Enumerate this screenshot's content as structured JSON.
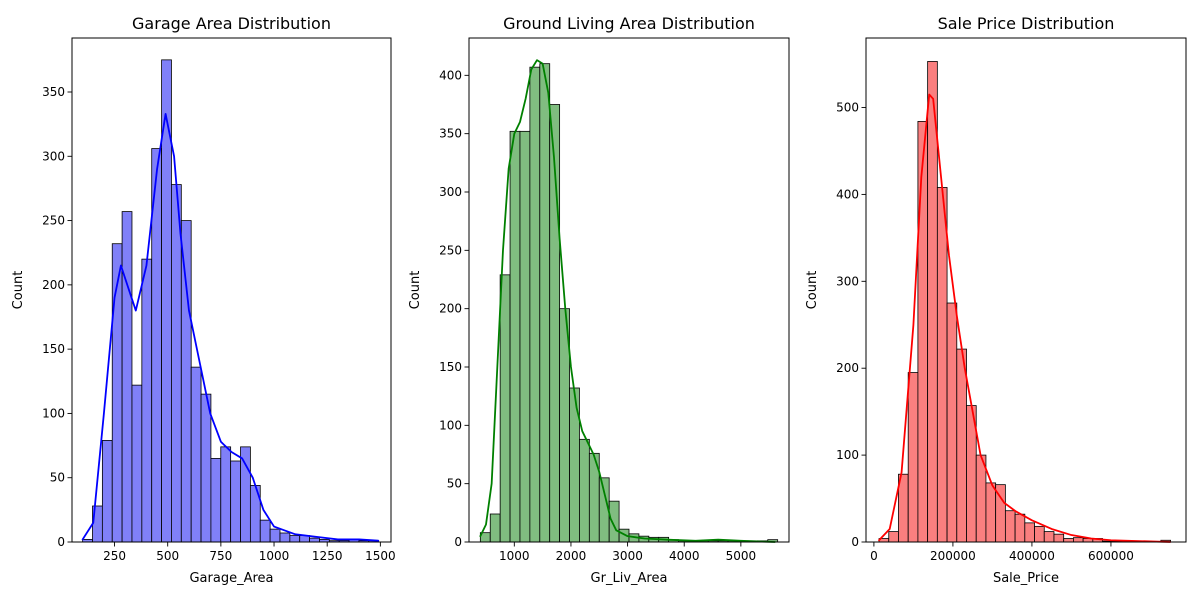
{
  "chart_data": [
    {
      "type": "histogram",
      "title": "Garage Area Distribution",
      "xlabel": "Garage_Area",
      "ylabel": "Count",
      "xlim": [
        50,
        1550
      ],
      "ylim": [
        0,
        392
      ],
      "xticks": [
        250,
        500,
        750,
        1000,
        1250,
        1500
      ],
      "yticks": [
        0,
        50,
        100,
        150,
        200,
        250,
        300,
        350
      ],
      "bin_start": 100,
      "bin_width": 46.4,
      "counts": [
        2,
        28,
        79,
        232,
        257,
        122,
        220,
        306,
        375,
        278,
        250,
        136,
        115,
        65,
        74,
        63,
        74,
        44,
        17,
        10,
        7,
        5,
        5,
        3,
        2,
        1,
        1,
        2,
        1,
        1
      ],
      "kde": [
        [
          100,
          2
        ],
        [
          150,
          15
        ],
        [
          200,
          100
        ],
        [
          250,
          190
        ],
        [
          280,
          215
        ],
        [
          310,
          200
        ],
        [
          350,
          180
        ],
        [
          400,
          215
        ],
        [
          450,
          290
        ],
        [
          490,
          333
        ],
        [
          530,
          300
        ],
        [
          560,
          240
        ],
        [
          600,
          180
        ],
        [
          650,
          140
        ],
        [
          700,
          100
        ],
        [
          750,
          78
        ],
        [
          800,
          70
        ],
        [
          850,
          65
        ],
        [
          900,
          50
        ],
        [
          950,
          25
        ],
        [
          1000,
          12
        ],
        [
          1100,
          6
        ],
        [
          1200,
          4
        ],
        [
          1300,
          2
        ],
        [
          1400,
          2
        ],
        [
          1490,
          1
        ]
      ],
      "color": "#0000ff",
      "fill": "#8080f8"
    },
    {
      "type": "histogram",
      "title": "Ground Living Area Distribution",
      "xlabel": "Gr_Liv_Area",
      "ylabel": "Count",
      "xlim": [
        200,
        5850
      ],
      "ylim": [
        0,
        432
      ],
      "xticks": [
        1000,
        2000,
        3000,
        4000,
        5000
      ],
      "yticks": [
        0,
        50,
        100,
        150,
        200,
        250,
        300,
        350,
        400
      ],
      "bin_start": 400,
      "bin_width": 175,
      "counts": [
        8,
        24,
        229,
        352,
        352,
        407,
        410,
        375,
        200,
        132,
        88,
        76,
        55,
        35,
        11,
        7,
        5,
        4,
        4,
        2,
        1,
        1,
        1,
        1,
        1,
        1,
        1,
        1,
        1,
        2
      ],
      "kde": [
        [
          400,
          5
        ],
        [
          500,
          15
        ],
        [
          600,
          50
        ],
        [
          700,
          150
        ],
        [
          800,
          250
        ],
        [
          900,
          320
        ],
        [
          1000,
          350
        ],
        [
          1100,
          360
        ],
        [
          1200,
          380
        ],
        [
          1300,
          405
        ],
        [
          1400,
          413
        ],
        [
          1500,
          410
        ],
        [
          1600,
          385
        ],
        [
          1700,
          330
        ],
        [
          1800,
          260
        ],
        [
          1900,
          200
        ],
        [
          2000,
          150
        ],
        [
          2100,
          115
        ],
        [
          2200,
          95
        ],
        [
          2300,
          85
        ],
        [
          2400,
          75
        ],
        [
          2500,
          60
        ],
        [
          2600,
          40
        ],
        [
          2700,
          20
        ],
        [
          2800,
          10
        ],
        [
          3000,
          5
        ],
        [
          3300,
          3
        ],
        [
          3700,
          2
        ],
        [
          4200,
          1
        ],
        [
          4600,
          2
        ],
        [
          5000,
          1
        ],
        [
          5600,
          0
        ]
      ],
      "color": "#008000",
      "fill": "#80bd80"
    },
    {
      "type": "histogram",
      "title": "Sale Price Distribution",
      "xlabel": "Sale_Price",
      "ylabel": "Count",
      "xlim": [
        -20000,
        790000
      ],
      "ylim": [
        0,
        580
      ],
      "xticks": [
        0,
        200000,
        400000,
        600000
      ],
      "yticks": [
        0,
        100,
        200,
        300,
        400,
        500
      ],
      "bin_start": 13000,
      "bin_width": 24600,
      "counts": [
        4,
        12,
        78,
        195,
        484,
        553,
        408,
        275,
        222,
        157,
        100,
        68,
        66,
        36,
        32,
        22,
        18,
        12,
        9,
        4,
        5,
        4,
        4,
        1,
        1,
        1,
        1,
        1,
        0,
        2
      ],
      "kde": [
        [
          13000,
          2
        ],
        [
          40000,
          15
        ],
        [
          70000,
          80
        ],
        [
          100000,
          250
        ],
        [
          120000,
          420
        ],
        [
          140000,
          515
        ],
        [
          150000,
          510
        ],
        [
          170000,
          420
        ],
        [
          190000,
          330
        ],
        [
          210000,
          260
        ],
        [
          230000,
          200
        ],
        [
          250000,
          150
        ],
        [
          270000,
          100
        ],
        [
          300000,
          65
        ],
        [
          330000,
          45
        ],
        [
          360000,
          35
        ],
        [
          400000,
          25
        ],
        [
          450000,
          15
        ],
        [
          500000,
          8
        ],
        [
          550000,
          4
        ],
        [
          600000,
          2
        ],
        [
          750000,
          0
        ]
      ],
      "color": "#ff0000",
      "fill": "#fa7f7f"
    }
  ]
}
